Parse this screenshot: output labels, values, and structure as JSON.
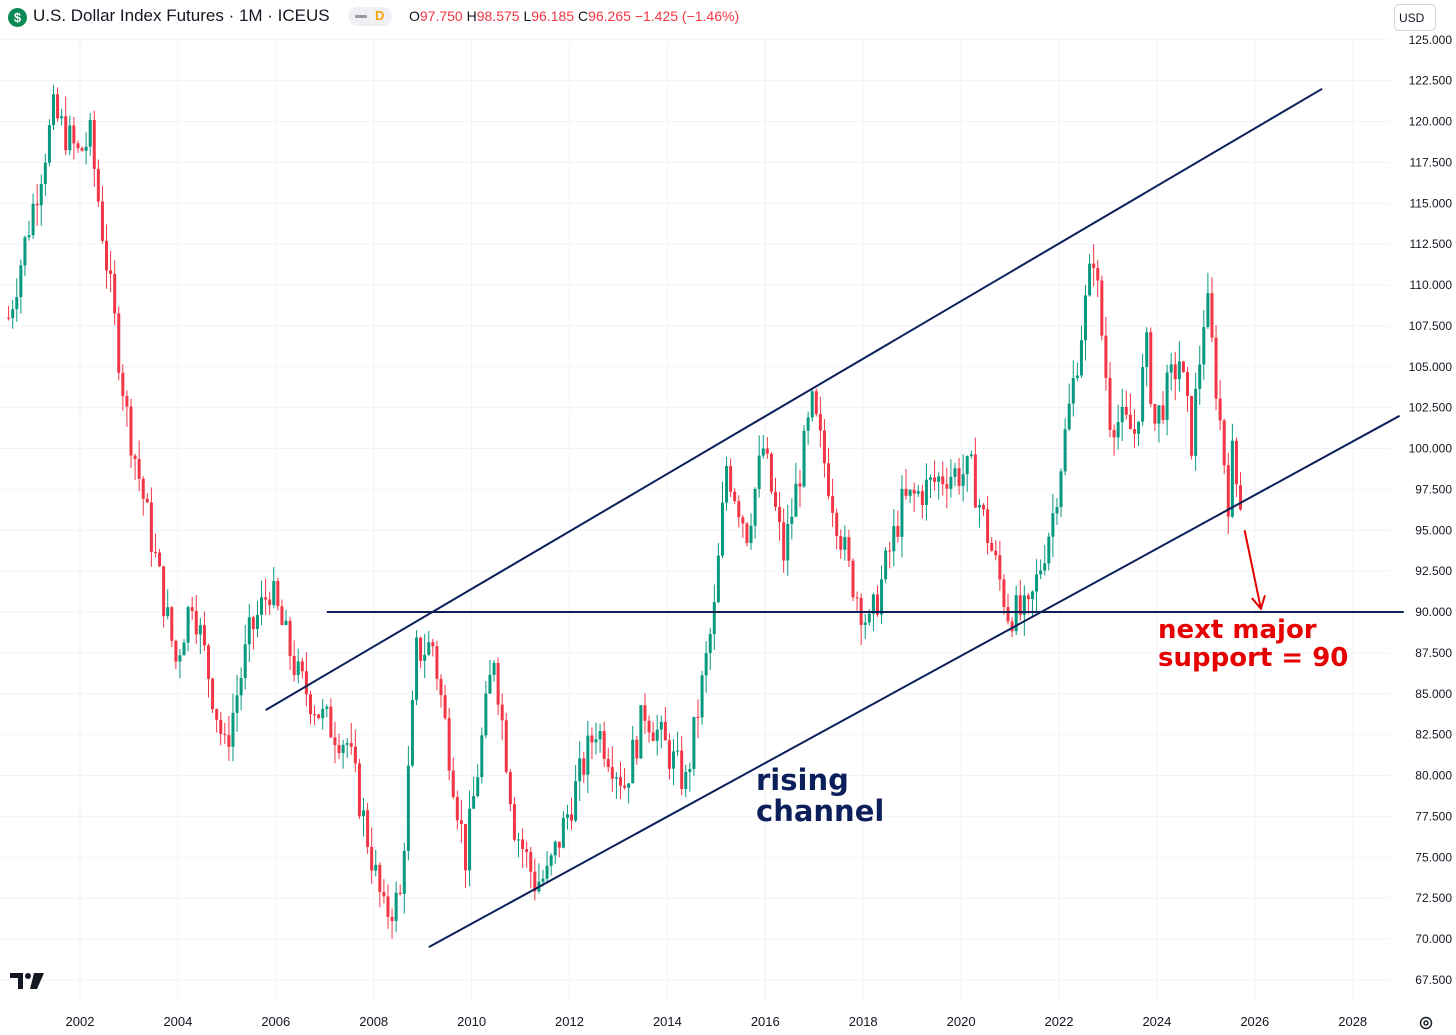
{
  "header": {
    "symbol_icon": "dollar-sign-icon",
    "symbol_icon_glyph": "$",
    "title": "U.S. Dollar Index Futures · 1M · ICEUS",
    "badge_letter": "D",
    "ohlc": {
      "o_label": "O",
      "o_value": "97.750",
      "h_label": "H",
      "h_value": "98.575",
      "l_label": "L",
      "l_value": "96.185",
      "c_label": "C",
      "c_value": "96.265",
      "change": "−1.425 (−1.46%)"
    },
    "currency_button": "USD"
  },
  "colors": {
    "up": "#089981",
    "down": "#f23645",
    "channel_line": "#0c1f5b",
    "annotation_red": "#e60000",
    "grid": "#f0f3fa",
    "axis_text": "#131722"
  },
  "annotations": {
    "support_label_line1": "next major",
    "support_label_line2": "support = 90",
    "channel_label_line1": "rising",
    "channel_label_line2": "channel"
  },
  "footer": {
    "logo_icon": "tradingview-logo-icon",
    "settings_icon": "settings-icon"
  },
  "chart_data": {
    "type": "candlestick",
    "title": "U.S. Dollar Index Futures · 1M · ICEUS",
    "interval": "monthly",
    "xlabel": "",
    "ylabel": "",
    "x_ticks": [
      "2002",
      "2004",
      "2006",
      "2008",
      "2010",
      "2012",
      "2014",
      "2016",
      "2018",
      "2020",
      "2022",
      "2024",
      "2026",
      "2028"
    ],
    "y_ticks": [
      "67.500",
      "70.000",
      "72.500",
      "75.000",
      "77.500",
      "80.000",
      "82.500",
      "85.000",
      "87.500",
      "90.000",
      "92.500",
      "95.000",
      "97.500",
      "100.000",
      "102.500",
      "105.000",
      "107.500",
      "110.000",
      "112.500",
      "115.000",
      "117.500",
      "120.000",
      "122.500",
      "125.000"
    ],
    "xlim": [
      2000.2,
      2029.1
    ],
    "ylim": [
      66.3,
      125.5
    ],
    "y_axis_position": "right",
    "grid": true,
    "anchors": [
      [
        "2000-07",
        108.0
      ],
      [
        "2001-06",
        120.5
      ],
      [
        "2001-12",
        118.0
      ],
      [
        "2002-03",
        119.0
      ],
      [
        "2002-12",
        102.0
      ],
      [
        "2003-06",
        94.5
      ],
      [
        "2003-12",
        87.0
      ],
      [
        "2004-04",
        91.0
      ],
      [
        "2004-12",
        81.5
      ],
      [
        "2005-06",
        88.5
      ],
      [
        "2005-11",
        91.5
      ],
      [
        "2006-06",
        86.0
      ],
      [
        "2006-12",
        83.5
      ],
      [
        "2007-06",
        82.0
      ],
      [
        "2008-03",
        71.5
      ],
      [
        "2008-07",
        72.5
      ],
      [
        "2008-11",
        87.5
      ],
      [
        "2009-03",
        88.0
      ],
      [
        "2009-11",
        75.0
      ],
      [
        "2010-06",
        87.5
      ],
      [
        "2010-11",
        77.0
      ],
      [
        "2011-04",
        73.5
      ],
      [
        "2011-07",
        73.8
      ],
      [
        "2012-07",
        83.0
      ],
      [
        "2013-02",
        79.5
      ],
      [
        "2013-07",
        84.0
      ],
      [
        "2014-05",
        79.5
      ],
      [
        "2014-12",
        90.0
      ],
      [
        "2015-03",
        99.0
      ],
      [
        "2015-08",
        95.0
      ],
      [
        "2015-12",
        100.0
      ],
      [
        "2016-05",
        93.5
      ],
      [
        "2016-12",
        102.5
      ],
      [
        "2017-09",
        92.5
      ],
      [
        "2018-02",
        89.0
      ],
      [
        "2018-10",
        96.5
      ],
      [
        "2019-09",
        98.5
      ],
      [
        "2020-03",
        98.5
      ],
      [
        "2020-12",
        90.0
      ],
      [
        "2021-05",
        89.8
      ],
      [
        "2021-11",
        96.0
      ],
      [
        "2022-09",
        112.0
      ],
      [
        "2023-01",
        102.0
      ],
      [
        "2023-07",
        101.0
      ],
      [
        "2023-10",
        106.0
      ],
      [
        "2023-12",
        101.5
      ],
      [
        "2024-06",
        105.5
      ],
      [
        "2024-09",
        100.5
      ],
      [
        "2024-12",
        108.0
      ],
      [
        "2025-01",
        108.5
      ],
      [
        "2025-06",
        97.0
      ],
      [
        "2025-07",
        99.5
      ],
      [
        "2025-09",
        96.3
      ]
    ],
    "last_bar": {
      "open": 97.75,
      "high": 98.575,
      "low": 96.185,
      "close": 96.265
    },
    "lines": [
      {
        "name": "upper-channel",
        "from": [
          "2005-10",
          84.0
        ],
        "to": [
          "2027-05",
          122.0
        ]
      },
      {
        "name": "lower-channel",
        "from": [
          "2009-02",
          69.5
        ],
        "to": [
          "2028-12",
          102.0
        ]
      },
      {
        "name": "support-90",
        "from": [
          "2007-01",
          90.0
        ],
        "to": [
          "2029-01",
          90.0
        ]
      }
    ],
    "arrow": {
      "from": [
        "2025-10",
        95.0
      ],
      "to": [
        "2026-02",
        90.2
      ]
    }
  }
}
